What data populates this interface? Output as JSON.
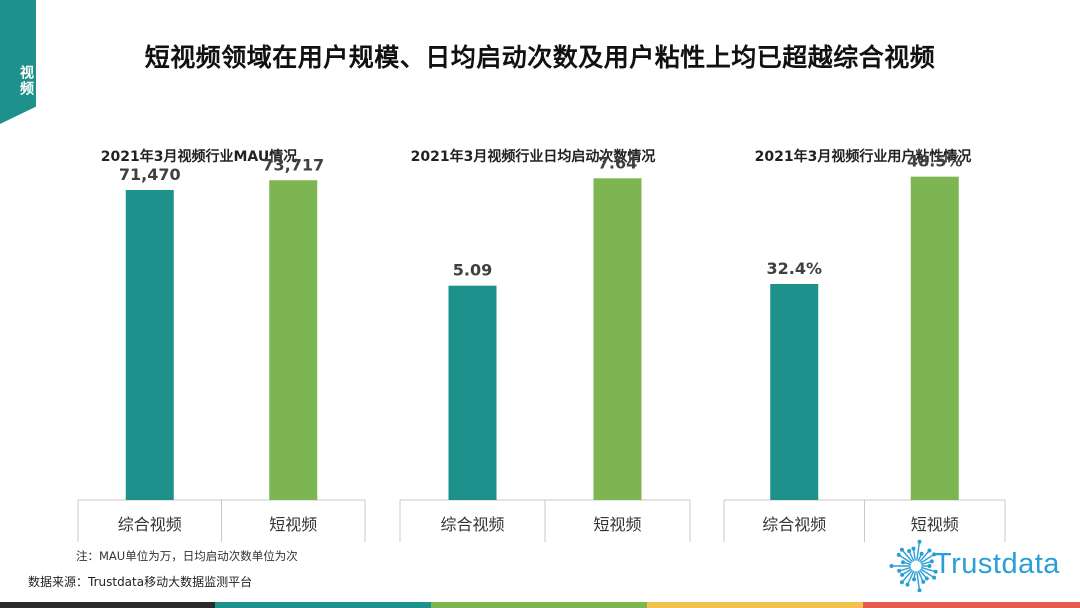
{
  "section_tag": "视频",
  "title": "短视频领域在用户规模、日均启动次数及用户粘性上均已超越综合视频",
  "note": "注：MAU单位为万，日均启动次数单位为次",
  "source": "数据来源：Trustdata移动大数据监测平台",
  "logo_text": "Trustdata",
  "colors": {
    "teal": "#1e918c",
    "green": "#7cb552",
    "axis": "#c8c8c8",
    "label": "#404040",
    "strip": [
      "#2b2b2b",
      "#1e918c",
      "#7cb552",
      "#f2c14e",
      "#e85a4f"
    ]
  },
  "chart_data": [
    {
      "type": "bar",
      "title": "2021年3月视频行业MAU情况",
      "categories": [
        "综合视频",
        "短视频"
      ],
      "values": [
        71470,
        73717
      ],
      "value_labels": [
        "71,470",
        "73,717"
      ],
      "ylim": [
        0,
        83000
      ],
      "xlabel": "",
      "ylabel": ""
    },
    {
      "type": "bar",
      "title": "2021年3月视频行业日均启动次数情况",
      "categories": [
        "综合视频",
        "短视频"
      ],
      "values": [
        5.09,
        7.64
      ],
      "value_labels": [
        "5.09",
        "7.64"
      ],
      "ylim": [
        0,
        8.55
      ],
      "xlabel": "",
      "ylabel": ""
    },
    {
      "type": "bar",
      "title": "2021年3月视频行业用户粘性情况",
      "categories": [
        "综合视频",
        "短视频"
      ],
      "values": [
        32.4,
        48.5
      ],
      "value_labels": [
        "32.4%",
        "48.5%"
      ],
      "ylim": [
        0,
        54
      ],
      "xlabel": "",
      "ylabel": ""
    }
  ]
}
